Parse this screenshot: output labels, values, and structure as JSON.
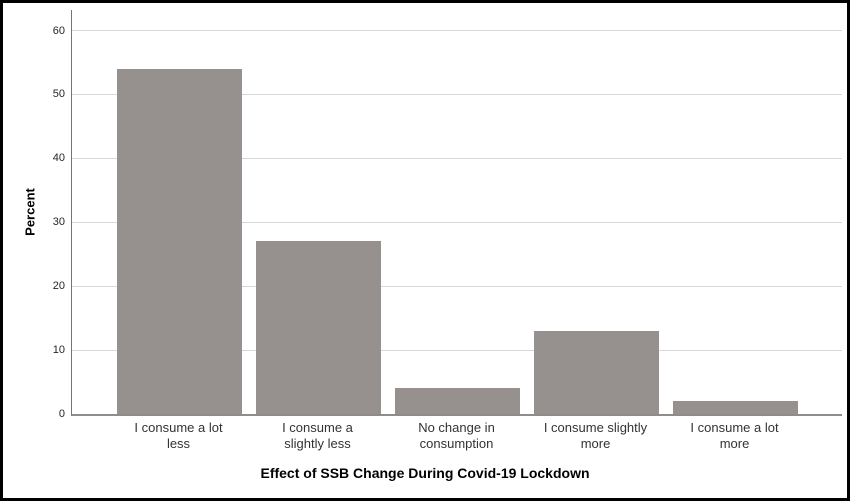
{
  "figure": {
    "background_color": "#ffffff",
    "border_color": "#000000"
  },
  "chart_data": {
    "type": "bar",
    "title": "",
    "xlabel": "Effect of SSB Change During Covid-19 Lockdown",
    "ylabel": "Percent",
    "categories": [
      "I consume a lot less",
      "I consume a slightly less",
      "No change in consumption",
      "I consume slightly more",
      "I consume a lot more"
    ],
    "category_lines": [
      [
        "I consume a lot",
        "less"
      ],
      [
        "I consume a",
        "slightly less"
      ],
      [
        "No change in",
        "consumption"
      ],
      [
        "I consume slightly",
        "more"
      ],
      [
        "I consume a lot",
        "more"
      ]
    ],
    "values": [
      54,
      27,
      4,
      13,
      2
    ],
    "ylim": [
      0,
      60
    ],
    "yticks": [
      0,
      10,
      20,
      30,
      40,
      50,
      60
    ],
    "grid": true,
    "legend": "none",
    "bar_color": "#96918f",
    "gridline_color": "#d9d9d9",
    "axis_line_color": "#8f8c8a",
    "tick_label_color": "#262626"
  }
}
